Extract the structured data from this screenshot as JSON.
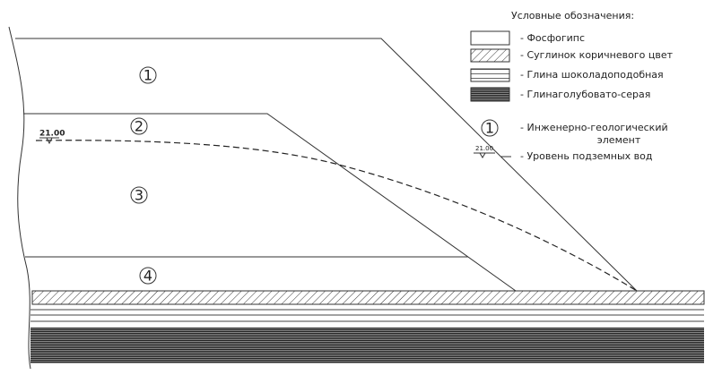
{
  "diagram": {
    "layers": [
      {
        "label": "1"
      },
      {
        "label": "2"
      },
      {
        "label": "3"
      },
      {
        "label": "4"
      }
    ],
    "water_level": "21.00"
  },
  "legend": {
    "title": "Условные обозначения:",
    "items": [
      {
        "text": "- Фосфогипс"
      },
      {
        "text": "- Суглинок коричневого цвет"
      },
      {
        "text": "- Глина шоколадоподобная"
      },
      {
        "text": "- Глинаголубовато-серая"
      },
      {
        "symbol": "1",
        "text": [
          "- Инженерно-геологический",
          "элемент"
        ]
      },
      {
        "symbol": "21.00",
        "text": "- Уровень подземных вод"
      }
    ]
  }
}
